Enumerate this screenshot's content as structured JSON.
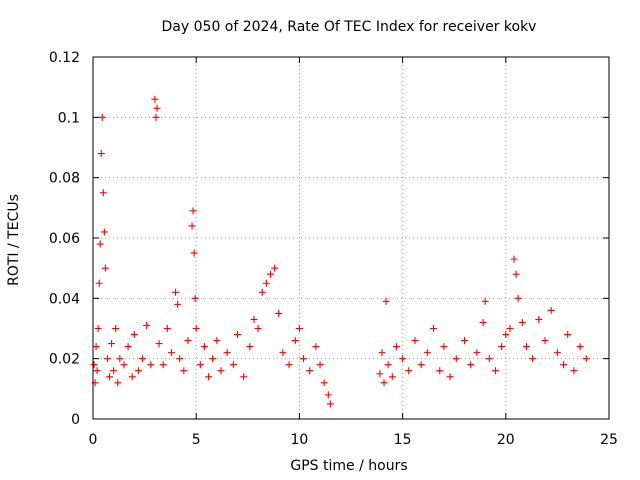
{
  "chart_data": {
    "type": "scatter",
    "title": "Day 050 of 2024, Rate Of TEC Index for receiver kokv",
    "xlabel": "GPS time / hours",
    "ylabel": "ROTI / TECUs",
    "xlim": [
      0,
      25
    ],
    "ylim": [
      0,
      0.12
    ],
    "x_ticks": [
      0,
      5,
      10,
      15,
      20,
      25
    ],
    "x_tick_labels": [
      "0",
      "5",
      "10",
      "15",
      "20",
      "25"
    ],
    "y_ticks": [
      0,
      0.02,
      0.04,
      0.06,
      0.08,
      0.1,
      0.12
    ],
    "y_tick_labels": [
      "0",
      "0.02",
      "0.04",
      "0.06",
      "0.08",
      "0.1",
      "0.12"
    ],
    "grid": true,
    "marker": "plus",
    "color": "#ff0000",
    "series": [
      {
        "name": "ROTI",
        "points": [
          [
            0.05,
            0.018
          ],
          [
            0.1,
            0.012
          ],
          [
            0.15,
            0.024
          ],
          [
            0.2,
            0.016
          ],
          [
            0.25,
            0.03
          ],
          [
            0.3,
            0.045
          ],
          [
            0.35,
            0.058
          ],
          [
            0.4,
            0.088
          ],
          [
            0.45,
            0.1
          ],
          [
            0.5,
            0.075
          ],
          [
            0.55,
            0.062
          ],
          [
            0.6,
            0.05
          ],
          [
            0.7,
            0.02
          ],
          [
            0.8,
            0.014
          ],
          [
            0.9,
            0.025
          ],
          [
            1.0,
            0.016
          ],
          [
            1.1,
            0.03
          ],
          [
            1.2,
            0.012
          ],
          [
            1.3,
            0.02
          ],
          [
            1.5,
            0.018
          ],
          [
            1.7,
            0.024
          ],
          [
            1.9,
            0.014
          ],
          [
            2.0,
            0.028
          ],
          [
            2.2,
            0.016
          ],
          [
            2.4,
            0.02
          ],
          [
            2.6,
            0.031
          ],
          [
            2.8,
            0.018
          ],
          [
            3.0,
            0.106
          ],
          [
            3.05,
            0.1
          ],
          [
            3.1,
            0.103
          ],
          [
            3.2,
            0.025
          ],
          [
            3.4,
            0.018
          ],
          [
            3.6,
            0.03
          ],
          [
            3.8,
            0.022
          ],
          [
            4.0,
            0.042
          ],
          [
            4.1,
            0.038
          ],
          [
            4.2,
            0.02
          ],
          [
            4.4,
            0.016
          ],
          [
            4.6,
            0.026
          ],
          [
            4.8,
            0.064
          ],
          [
            4.85,
            0.069
          ],
          [
            4.9,
            0.055
          ],
          [
            4.95,
            0.04
          ],
          [
            5.0,
            0.03
          ],
          [
            5.2,
            0.018
          ],
          [
            5.4,
            0.024
          ],
          [
            5.6,
            0.014
          ],
          [
            5.8,
            0.02
          ],
          [
            6.0,
            0.026
          ],
          [
            6.2,
            0.016
          ],
          [
            6.5,
            0.022
          ],
          [
            6.8,
            0.018
          ],
          [
            7.0,
            0.028
          ],
          [
            7.3,
            0.014
          ],
          [
            7.6,
            0.024
          ],
          [
            7.8,
            0.033
          ],
          [
            8.0,
            0.03
          ],
          [
            8.2,
            0.042
          ],
          [
            8.4,
            0.045
          ],
          [
            8.6,
            0.048
          ],
          [
            8.8,
            0.05
          ],
          [
            9.0,
            0.035
          ],
          [
            9.2,
            0.022
          ],
          [
            9.5,
            0.018
          ],
          [
            9.8,
            0.026
          ],
          [
            10.0,
            0.03
          ],
          [
            10.2,
            0.02
          ],
          [
            10.5,
            0.016
          ],
          [
            10.8,
            0.024
          ],
          [
            11.0,
            0.018
          ],
          [
            11.2,
            0.012
          ],
          [
            11.4,
            0.008
          ],
          [
            11.5,
            0.005
          ],
          [
            13.9,
            0.015
          ],
          [
            14.0,
            0.022
          ],
          [
            14.1,
            0.012
          ],
          [
            14.2,
            0.039
          ],
          [
            14.3,
            0.018
          ],
          [
            14.5,
            0.014
          ],
          [
            14.7,
            0.024
          ],
          [
            15.0,
            0.02
          ],
          [
            15.3,
            0.016
          ],
          [
            15.6,
            0.026
          ],
          [
            15.9,
            0.018
          ],
          [
            16.2,
            0.022
          ],
          [
            16.5,
            0.03
          ],
          [
            16.8,
            0.016
          ],
          [
            17.0,
            0.024
          ],
          [
            17.3,
            0.014
          ],
          [
            17.6,
            0.02
          ],
          [
            18.0,
            0.026
          ],
          [
            18.3,
            0.018
          ],
          [
            18.6,
            0.022
          ],
          [
            18.9,
            0.032
          ],
          [
            19.0,
            0.039
          ],
          [
            19.2,
            0.02
          ],
          [
            19.5,
            0.016
          ],
          [
            19.8,
            0.024
          ],
          [
            20.0,
            0.028
          ],
          [
            20.2,
            0.03
          ],
          [
            20.4,
            0.053
          ],
          [
            20.5,
            0.048
          ],
          [
            20.6,
            0.04
          ],
          [
            20.8,
            0.032
          ],
          [
            21.0,
            0.024
          ],
          [
            21.3,
            0.02
          ],
          [
            21.6,
            0.033
          ],
          [
            21.9,
            0.026
          ],
          [
            22.2,
            0.036
          ],
          [
            22.5,
            0.022
          ],
          [
            22.8,
            0.018
          ],
          [
            23.0,
            0.028
          ],
          [
            23.3,
            0.016
          ],
          [
            23.6,
            0.024
          ],
          [
            23.9,
            0.02
          ]
        ]
      }
    ]
  }
}
